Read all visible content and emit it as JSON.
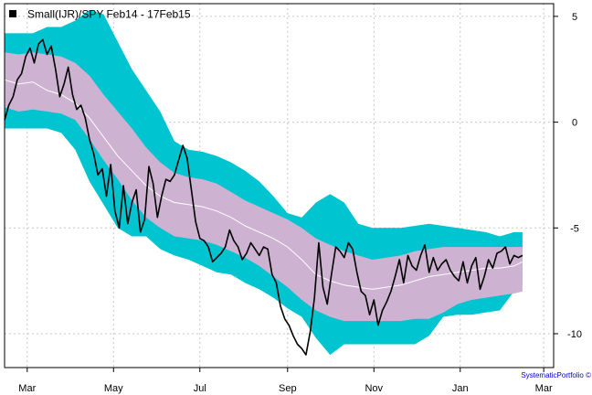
{
  "chart_data": {
    "type": "area",
    "title": "",
    "legend": {
      "label": "Small(IJR)/SPY Feb14 - 17Feb15",
      "placement": "top-left",
      "marker_color": "#000000"
    },
    "credit": "SystematicPortfolio ©",
    "x_tick_labels": [
      "Mar",
      "May",
      "Jul",
      "Sep",
      "Nov",
      "Jan",
      "Mar"
    ],
    "x_tick_days": [
      16,
      77,
      138,
      200,
      261,
      322,
      381
    ],
    "xlim": [
      0,
      388
    ],
    "ylim": [
      -11.6,
      5.6
    ],
    "y_ticks": [
      5,
      0,
      -5,
      -10
    ],
    "y_tick_labels": [
      "5",
      "0",
      "-5",
      "-10"
    ],
    "y_axis_side": "right",
    "grid": true,
    "colors": {
      "outer_band": "#00c4d0",
      "inner_band": "#cdb2d1",
      "mean_line": "#ffffff",
      "price_line": "#000000",
      "grid": "#c8c8c8",
      "frame": "#000000"
    },
    "series": [
      {
        "name": "Small(IJR)/SPY Feb14 - 17Feb15",
        "x": [
          0,
          3,
          6,
          9,
          12,
          15,
          18,
          21,
          24,
          27,
          30,
          33,
          36,
          39,
          42,
          45,
          48,
          51,
          54,
          57,
          60,
          63,
          66,
          69,
          72,
          75,
          78,
          81,
          84,
          87,
          90,
          93,
          96,
          99,
          102,
          105,
          108,
          111,
          114,
          117,
          120,
          123,
          126,
          129,
          132,
          135,
          138,
          141,
          144,
          147,
          150,
          153,
          156,
          159,
          162,
          165,
          168,
          171,
          174,
          177,
          180,
          183,
          186,
          189,
          192,
          195,
          198,
          201,
          204,
          207,
          210,
          213,
          216,
          219,
          222,
          225,
          228,
          231,
          234,
          237,
          240,
          243,
          246,
          249,
          252,
          255,
          258,
          261,
          264,
          267,
          270,
          273,
          276,
          279,
          282,
          285,
          288,
          291,
          294,
          297,
          300,
          303,
          306,
          309,
          312,
          315,
          318,
          321,
          324,
          327,
          330,
          333,
          336,
          339,
          342,
          345,
          348,
          351,
          354,
          357,
          360,
          363,
          366
        ],
        "y": [
          0.1,
          0.8,
          1.2,
          2.0,
          2.3,
          3.1,
          3.5,
          2.8,
          3.7,
          3.9,
          3.2,
          3.6,
          2.5,
          1.2,
          1.8,
          2.6,
          1.3,
          0.6,
          0.8,
          0.2,
          -0.8,
          -1.5,
          -2.5,
          -2.2,
          -3.5,
          -2.0,
          -4.2,
          -5.0,
          -3.0,
          -4.8,
          -3.8,
          -3.2,
          -5.2,
          -4.6,
          -2.1,
          -2.9,
          -4.5,
          -3.5,
          -2.7,
          -2.8,
          -2.5,
          -1.8,
          -1.1,
          -1.7,
          -3.2,
          -4.7,
          -5.5,
          -5.6,
          -5.9,
          -6.6,
          -6.4,
          -6.2,
          -5.9,
          -5.1,
          -5.6,
          -5.9,
          -6.5,
          -6.2,
          -5.7,
          -6.0,
          -6.3,
          -5.9,
          -6.0,
          -7.2,
          -7.6,
          -8.7,
          -9.3,
          -9.6,
          -10.1,
          -10.5,
          -10.7,
          -11.0,
          -9.9,
          -8.3,
          -5.7,
          -7.8,
          -8.6,
          -7.2,
          -5.9,
          -6.1,
          -6.4,
          -5.7,
          -6.0,
          -7.1,
          -8.0,
          -8.2,
          -9.1,
          -8.4,
          -9.6,
          -8.9,
          -8.5,
          -8.0,
          -7.3,
          -6.5,
          -7.6,
          -6.3,
          -6.8,
          -7.0,
          -6.3,
          -5.8,
          -7.1,
          -6.4,
          -7.0,
          -6.7,
          -6.5,
          -7.0,
          -7.3,
          -7.5,
          -6.6,
          -7.6,
          -6.8,
          -6.4,
          -7.9,
          -7.3,
          -6.5,
          -6.9,
          -6.2,
          -6.1,
          -5.9,
          -6.7,
          -6.3,
          -6.4,
          -6.3
        ],
        "color": "#000000"
      }
    ],
    "band_x": [
      0,
      10,
      20,
      30,
      40,
      50,
      60,
      70,
      80,
      90,
      100,
      110,
      120,
      130,
      140,
      150,
      160,
      170,
      180,
      190,
      200,
      210,
      220,
      230,
      240,
      250,
      260,
      270,
      280,
      290,
      300,
      310,
      320,
      330,
      340,
      350,
      360,
      366
    ],
    "mean": [
      2.0,
      1.8,
      1.9,
      1.5,
      1.3,
      0.9,
      0.2,
      -0.7,
      -1.6,
      -2.3,
      -3.0,
      -3.5,
      -3.8,
      -3.9,
      -4.0,
      -4.2,
      -4.5,
      -4.9,
      -5.2,
      -5.5,
      -5.9,
      -6.5,
      -7.2,
      -7.5,
      -7.7,
      -7.8,
      -7.9,
      -7.8,
      -7.7,
      -7.5,
      -7.3,
      -7.2,
      -7.1,
      -7.0,
      -6.9,
      -6.9,
      -6.8,
      -6.6
    ],
    "inner_upper": [
      3.3,
      3.2,
      3.3,
      3.2,
      3.1,
      2.8,
      2.2,
      1.3,
      0.5,
      -0.3,
      -1.2,
      -1.9,
      -2.4,
      -2.6,
      -2.7,
      -2.9,
      -3.3,
      -3.7,
      -4.0,
      -4.3,
      -4.6,
      -5.0,
      -5.5,
      -5.8,
      -6.1,
      -6.3,
      -6.5,
      -6.4,
      -6.3,
      -6.1,
      -6.0,
      -5.9,
      -5.9,
      -5.9,
      -5.9,
      -5.9,
      -5.9,
      -5.9
    ],
    "inner_lower": [
      0.7,
      0.5,
      0.6,
      0.5,
      0.4,
      0.1,
      -0.8,
      -1.8,
      -2.7,
      -3.7,
      -4.5,
      -5.0,
      -5.4,
      -5.5,
      -5.6,
      -5.8,
      -6.1,
      -6.4,
      -6.8,
      -7.3,
      -7.8,
      -8.4,
      -8.9,
      -9.2,
      -9.4,
      -9.4,
      -9.4,
      -9.4,
      -9.4,
      -9.3,
      -9.3,
      -9.0,
      -8.6,
      -8.4,
      -8.3,
      -8.2,
      -8.1,
      -8.0
    ],
    "outer_upper": [
      4.2,
      4.2,
      4.2,
      4.5,
      4.5,
      4.8,
      5.3,
      5.1,
      3.8,
      2.5,
      1.5,
      0.5,
      -0.9,
      -1.3,
      -1.4,
      -1.6,
      -1.9,
      -2.3,
      -2.8,
      -3.5,
      -4.3,
      -4.5,
      -3.8,
      -3.4,
      -3.8,
      -4.8,
      -5.0,
      -5.0,
      -5.0,
      -4.9,
      -4.8,
      -4.9,
      -5.0,
      -5.1,
      -5.2,
      -5.4,
      -5.2,
      -5.2
    ],
    "outer_lower": [
      -0.3,
      -0.3,
      -0.3,
      -0.3,
      -0.5,
      -1.3,
      -2.8,
      -3.9,
      -5.0,
      -5.4,
      -5.4,
      -6.0,
      -6.3,
      -6.5,
      -6.8,
      -7.1,
      -7.2,
      -7.6,
      -7.9,
      -8.3,
      -8.8,
      -9.2,
      -10.2,
      -11.0,
      -10.5,
      -10.5,
      -10.5,
      -10.5,
      -10.5,
      -10.5,
      -10.1,
      -9.2,
      -9.1,
      -9.1,
      -9.0,
      -8.9,
      -8.0,
      -7.7
    ]
  }
}
